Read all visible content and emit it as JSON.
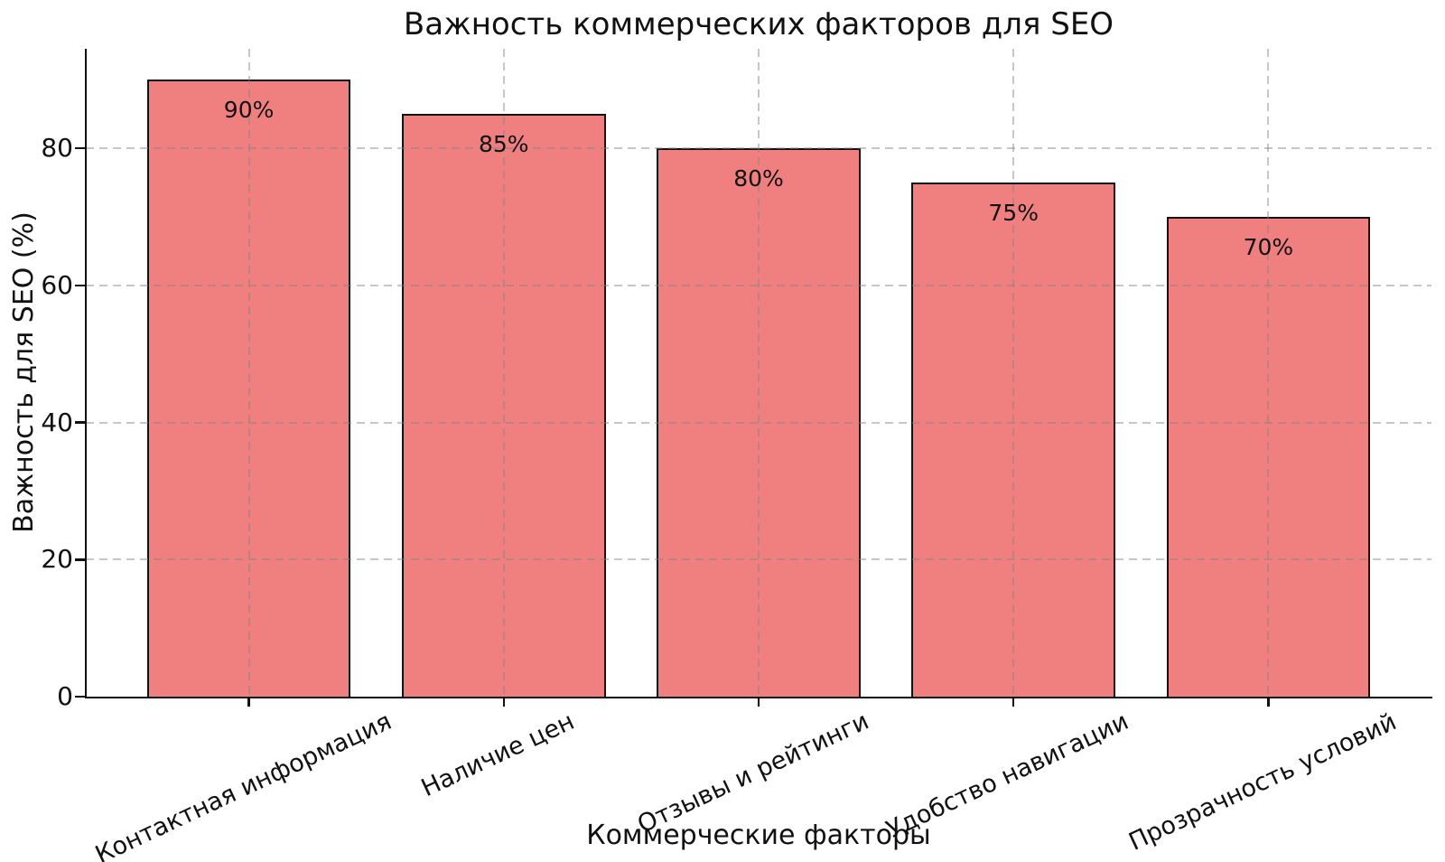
{
  "chart_data": {
    "type": "bar",
    "title": "Важность коммерческих факторов для SEO",
    "xlabel": "Коммерческие факторы",
    "ylabel": "Важность для SEO (%)",
    "categories": [
      "Контактная информация",
      "Наличие цен",
      "Отзывы и рейтинги",
      "Удобство навигации",
      "Прозрачность условий"
    ],
    "values": [
      90,
      85,
      80,
      75,
      70
    ],
    "bar_labels": [
      "90%",
      "85%",
      "80%",
      "75%",
      "70%"
    ],
    "yticks": [
      0,
      20,
      40,
      60,
      80
    ],
    "ylim": [
      0,
      94.5
    ],
    "grid": "dashed",
    "legend": "none",
    "bar_color": "#F08080",
    "bar_edge_color": "#111111",
    "grid_color": "#c7c7c7",
    "text_color": "#111111",
    "x_label_rotation_deg": 25
  }
}
